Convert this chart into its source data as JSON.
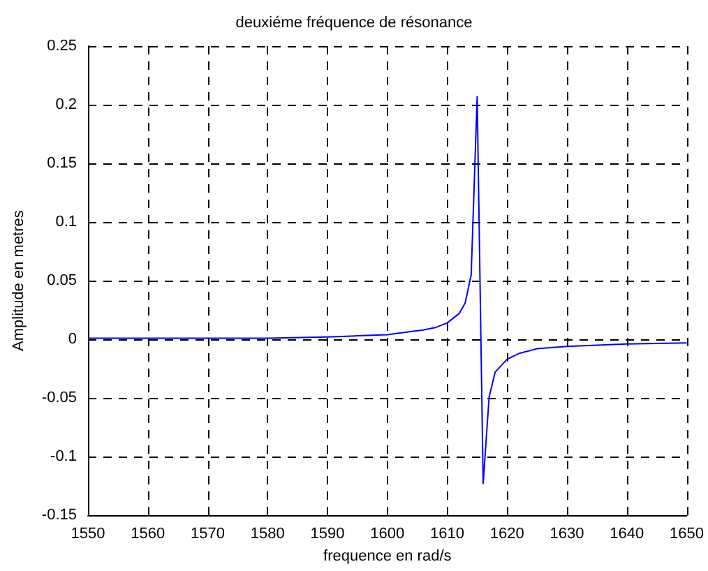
{
  "chart_data": {
    "type": "line",
    "title": "deuxiéme fréquence de résonance",
    "xlabel": "frequence en rad/s",
    "ylabel": "Amplitude en metres",
    "x": [
      1550,
      1560,
      1570,
      1580,
      1590,
      1595,
      1600,
      1603,
      1606,
      1608,
      1610,
      1612,
      1613,
      1614,
      1615,
      1616,
      1617,
      1618,
      1620,
      1622,
      1625,
      1630,
      1640,
      1650
    ],
    "series": [
      {
        "color": "#0000ff",
        "values": [
          0.001,
          0.001,
          0.001,
          0.001,
          0.002,
          0.003,
          0.004,
          0.006,
          0.008,
          0.01,
          0.014,
          0.022,
          0.031,
          0.055,
          0.207,
          -0.123,
          -0.049,
          -0.028,
          -0.017,
          -0.012,
          -0.008,
          -0.006,
          -0.004,
          -0.003
        ]
      }
    ],
    "xlim": [
      1550,
      1650
    ],
    "xticks": [
      1550,
      1560,
      1570,
      1580,
      1590,
      1600,
      1610,
      1620,
      1630,
      1640,
      1650
    ],
    "ylim": [
      -0.15,
      0.25
    ],
    "yticks": [
      -0.15,
      -0.1,
      -0.05,
      0,
      0.05,
      0.1,
      0.15,
      0.2,
      0.25
    ],
    "grid": true,
    "line_style": "solid",
    "marker": "none"
  }
}
